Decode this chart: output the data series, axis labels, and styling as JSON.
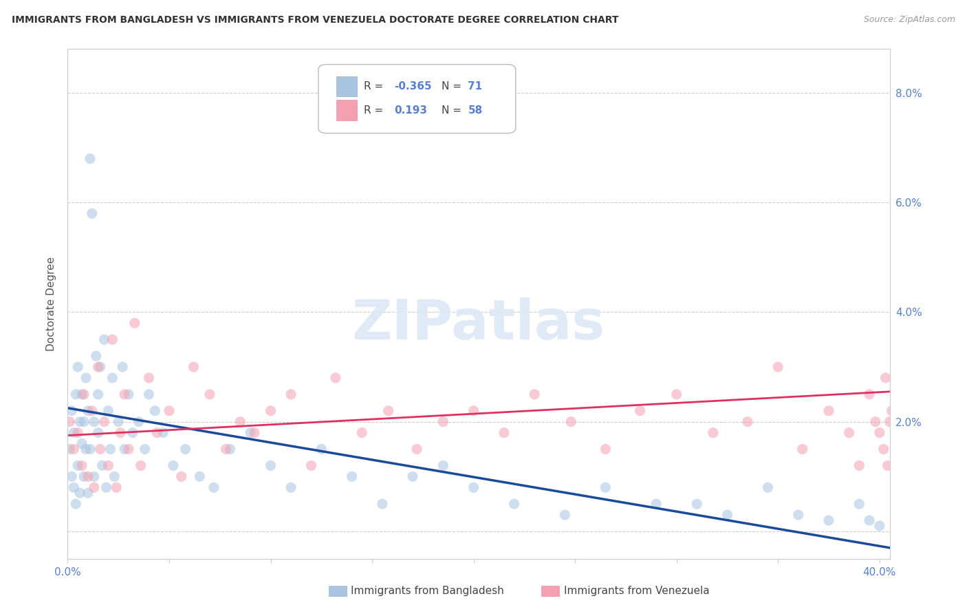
{
  "title": "IMMIGRANTS FROM BANGLADESH VS IMMIGRANTS FROM VENEZUELA DOCTORATE DEGREE CORRELATION CHART",
  "source": "Source: ZipAtlas.com",
  "ylabel": "Doctorate Degree",
  "y_ticks": [
    0.0,
    0.02,
    0.04,
    0.06,
    0.08
  ],
  "y_tick_labels_right": [
    "",
    "2.0%",
    "4.0%",
    "6.0%",
    "8.0%"
  ],
  "x_ticks": [
    0.0,
    0.05,
    0.1,
    0.15,
    0.2,
    0.25,
    0.3,
    0.35,
    0.4
  ],
  "x_tick_labels": [
    "0.0%",
    "",
    "",
    "",
    "",
    "",
    "",
    "",
    "40.0%"
  ],
  "xlim": [
    0.0,
    0.405
  ],
  "ylim": [
    -0.005,
    0.088
  ],
  "legend_r1": "-0.365",
  "legend_n1": "71",
  "legend_r2": "0.193",
  "legend_n2": "58",
  "color_bangladesh": "#a8c4e0",
  "color_venezuela": "#f4a0b0",
  "color_line_bangladesh": "#1a4a9a",
  "color_line_venezuela": "#e03060",
  "watermark_text": "ZIPatlas",
  "bd_x": [
    0.001,
    0.002,
    0.002,
    0.003,
    0.003,
    0.004,
    0.004,
    0.005,
    0.005,
    0.006,
    0.006,
    0.007,
    0.007,
    0.008,
    0.008,
    0.009,
    0.009,
    0.01,
    0.01,
    0.011,
    0.011,
    0.012,
    0.013,
    0.013,
    0.014,
    0.015,
    0.015,
    0.016,
    0.017,
    0.018,
    0.019,
    0.02,
    0.021,
    0.022,
    0.023,
    0.025,
    0.027,
    0.028,
    0.03,
    0.032,
    0.035,
    0.038,
    0.04,
    0.043,
    0.047,
    0.052,
    0.058,
    0.065,
    0.072,
    0.08,
    0.09,
    0.1,
    0.11,
    0.125,
    0.14,
    0.155,
    0.17,
    0.185,
    0.2,
    0.22,
    0.245,
    0.265,
    0.29,
    0.31,
    0.325,
    0.345,
    0.36,
    0.375,
    0.39,
    0.395,
    0.4
  ],
  "bd_y": [
    0.015,
    0.022,
    0.01,
    0.018,
    0.008,
    0.025,
    0.005,
    0.03,
    0.012,
    0.02,
    0.007,
    0.016,
    0.025,
    0.01,
    0.02,
    0.015,
    0.028,
    0.022,
    0.007,
    0.068,
    0.015,
    0.058,
    0.02,
    0.01,
    0.032,
    0.018,
    0.025,
    0.03,
    0.012,
    0.035,
    0.008,
    0.022,
    0.015,
    0.028,
    0.01,
    0.02,
    0.03,
    0.015,
    0.025,
    0.018,
    0.02,
    0.015,
    0.025,
    0.022,
    0.018,
    0.012,
    0.015,
    0.01,
    0.008,
    0.015,
    0.018,
    0.012,
    0.008,
    0.015,
    0.01,
    0.005,
    0.01,
    0.012,
    0.008,
    0.005,
    0.003,
    0.008,
    0.005,
    0.005,
    0.003,
    0.008,
    0.003,
    0.002,
    0.005,
    0.002,
    0.001
  ],
  "ven_x": [
    0.001,
    0.003,
    0.005,
    0.007,
    0.008,
    0.01,
    0.012,
    0.013,
    0.015,
    0.016,
    0.018,
    0.02,
    0.022,
    0.024,
    0.026,
    0.028,
    0.03,
    0.033,
    0.036,
    0.04,
    0.044,
    0.05,
    0.056,
    0.062,
    0.07,
    0.078,
    0.085,
    0.092,
    0.1,
    0.11,
    0.12,
    0.132,
    0.145,
    0.158,
    0.172,
    0.185,
    0.2,
    0.215,
    0.23,
    0.248,
    0.265,
    0.282,
    0.3,
    0.318,
    0.335,
    0.35,
    0.362,
    0.375,
    0.385,
    0.39,
    0.395,
    0.398,
    0.4,
    0.402,
    0.403,
    0.404,
    0.405,
    0.406
  ],
  "ven_y": [
    0.02,
    0.015,
    0.018,
    0.012,
    0.025,
    0.01,
    0.022,
    0.008,
    0.03,
    0.015,
    0.02,
    0.012,
    0.035,
    0.008,
    0.018,
    0.025,
    0.015,
    0.038,
    0.012,
    0.028,
    0.018,
    0.022,
    0.01,
    0.03,
    0.025,
    0.015,
    0.02,
    0.018,
    0.022,
    0.025,
    0.012,
    0.028,
    0.018,
    0.022,
    0.015,
    0.02,
    0.022,
    0.018,
    0.025,
    0.02,
    0.015,
    0.022,
    0.025,
    0.018,
    0.02,
    0.03,
    0.015,
    0.022,
    0.018,
    0.012,
    0.025,
    0.02,
    0.018,
    0.015,
    0.028,
    0.012,
    0.02,
    0.022
  ],
  "bd_line_x0": 0.0,
  "bd_line_x1": 0.405,
  "bd_line_y0": 0.0225,
  "bd_line_y1": -0.003,
  "ven_line_x0": 0.0,
  "ven_line_x1": 0.405,
  "ven_line_y0": 0.0175,
  "ven_line_y1": 0.0255
}
